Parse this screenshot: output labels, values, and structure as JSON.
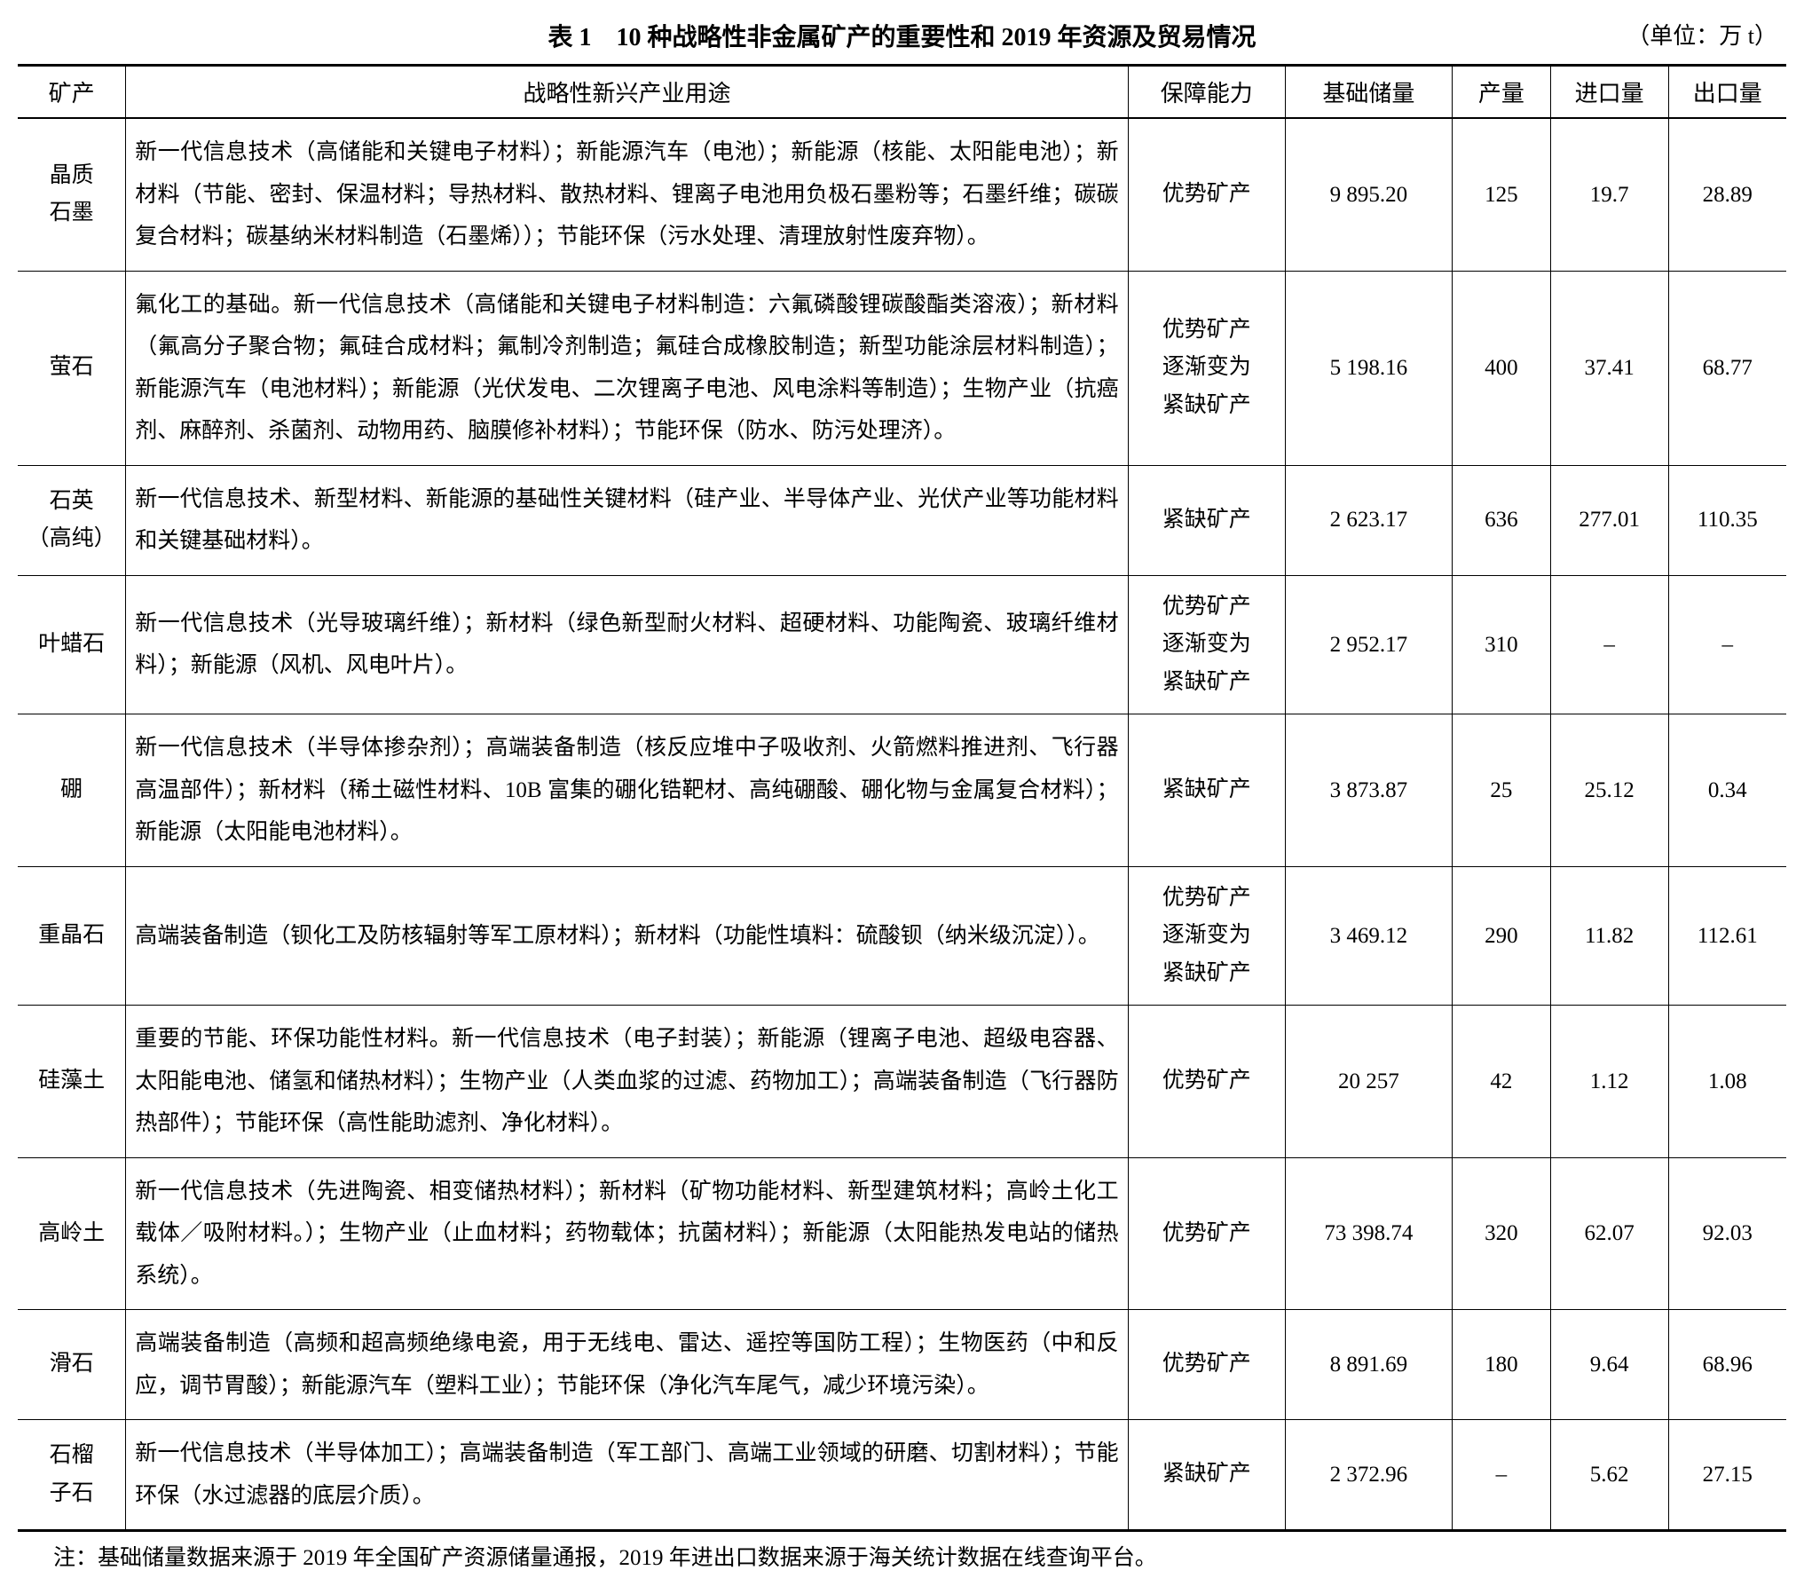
{
  "title": "表 1　10 种战略性非金属矿产的重要性和 2019 年资源及贸易情况",
  "unit": "（单位：万 t）",
  "columns": {
    "mineral": "矿产",
    "usage": "战略性新兴产业用途",
    "capacity": "保障能力",
    "reserve": "基础储量",
    "production": "产量",
    "import": "进口量",
    "export": "出口量"
  },
  "rows": [
    {
      "mineral": "晶质\n石墨",
      "usage": "新一代信息技术（高储能和关键电子材料）；新能源汽车（电池）；新能源（核能、太阳能电池）；新材料（节能、密封、保温材料；导热材料、散热材料、锂离子电池用负极石墨粉等；石墨纤维；碳碳复合材料；碳基纳米材料制造（石墨烯））；节能环保（污水处理、清理放射性废弃物）。",
      "capacity": "优势矿产",
      "reserve": "9 895.20",
      "production": "125",
      "import": "19.7",
      "export": "28.89"
    },
    {
      "mineral": "萤石",
      "usage": "氟化工的基础。新一代信息技术（高储能和关键电子材料制造：六氟磷酸锂碳酸酯类溶液）；新材料（氟高分子聚合物；氟硅合成材料；氟制冷剂制造；氟硅合成橡胶制造；新型功能涂层材料制造）；新能源汽车（电池材料）；新能源（光伏发电、二次锂离子电池、风电涂料等制造）；生物产业（抗癌剂、麻醉剂、杀菌剂、动物用药、脑膜修补材料）；节能环保（防水、防污处理济）。",
      "capacity": "优势矿产\n逐渐变为\n紧缺矿产",
      "reserve": "5 198.16",
      "production": "400",
      "import": "37.41",
      "export": "68.77"
    },
    {
      "mineral": "石英\n（高纯）",
      "usage": "新一代信息技术、新型材料、新能源的基础性关键材料（硅产业、半导体产业、光伏产业等功能材料和关键基础材料）。",
      "capacity": "紧缺矿产",
      "reserve": "2 623.17",
      "production": "636",
      "import": "277.01",
      "export": "110.35"
    },
    {
      "mineral": "叶蜡石",
      "usage": "新一代信息技术（光导玻璃纤维）；新材料（绿色新型耐火材料、超硬材料、功能陶瓷、玻璃纤维材料）；新能源（风机、风电叶片）。",
      "capacity": "优势矿产\n逐渐变为\n紧缺矿产",
      "reserve": "2 952.17",
      "production": "310",
      "import": "–",
      "export": "–"
    },
    {
      "mineral": "硼",
      "usage": "新一代信息技术（半导体掺杂剂）；高端装备制造（核反应堆中子吸收剂、火箭燃料推进剂、飞行器高温部件）；新材料（稀土磁性材料、10B 富集的硼化锆靶材、高纯硼酸、硼化物与金属复合材料）；新能源（太阳能电池材料）。",
      "capacity": "紧缺矿产",
      "reserve": "3 873.87",
      "production": "25",
      "import": "25.12",
      "export": "0.34"
    },
    {
      "mineral": "重晶石",
      "usage": "高端装备制造（钡化工及防核辐射等军工原材料）；新材料（功能性填料：硫酸钡（纳米级沉淀））。",
      "capacity": "优势矿产\n逐渐变为\n紧缺矿产",
      "reserve": "3 469.12",
      "production": "290",
      "import": "11.82",
      "export": "112.61"
    },
    {
      "mineral": "硅藻土",
      "usage": "重要的节能、环保功能性材料。新一代信息技术（电子封装）；新能源（锂离子电池、超级电容器、太阳能电池、储氢和储热材料）；生物产业（人类血浆的过滤、药物加工）；高端装备制造（飞行器防热部件）；节能环保（高性能助滤剂、净化材料）。",
      "capacity": "优势矿产",
      "reserve": "20 257",
      "production": "42",
      "import": "1.12",
      "export": "1.08"
    },
    {
      "mineral": "高岭土",
      "usage": "新一代信息技术（先进陶瓷、相变储热材料）；新材料（矿物功能材料、新型建筑材料；高岭土化工载体／吸附材料。）；生物产业（止血材料；药物载体；抗菌材料）；新能源（太阳能热发电站的储热系统）。",
      "capacity": "优势矿产",
      "reserve": "73 398.74",
      "production": "320",
      "import": "62.07",
      "export": "92.03"
    },
    {
      "mineral": "滑石",
      "usage": "高端装备制造（高频和超高频绝缘电瓷，用于无线电、雷达、遥控等国防工程）；生物医药（中和反应，调节胃酸）；新能源汽车（塑料工业）；节能环保（净化汽车尾气，减少环境污染）。",
      "capacity": "优势矿产",
      "reserve": "8 891.69",
      "production": "180",
      "import": "9.64",
      "export": "68.96"
    },
    {
      "mineral": "石榴\n子石",
      "usage": "新一代信息技术（半导体加工）；高端装备制造（军工部门、高端工业领域的研磨、切割材料）；节能环保（水过滤器的底层介质）。",
      "capacity": "紧缺矿产",
      "reserve": "2 372.96",
      "production": "–",
      "import": "5.62",
      "export": "27.15"
    }
  ],
  "footnote": "注：基础储量数据来源于 2019 年全国矿产资源储量通报，2019 年进出口数据来源于海关统计数据在线查询平台。"
}
